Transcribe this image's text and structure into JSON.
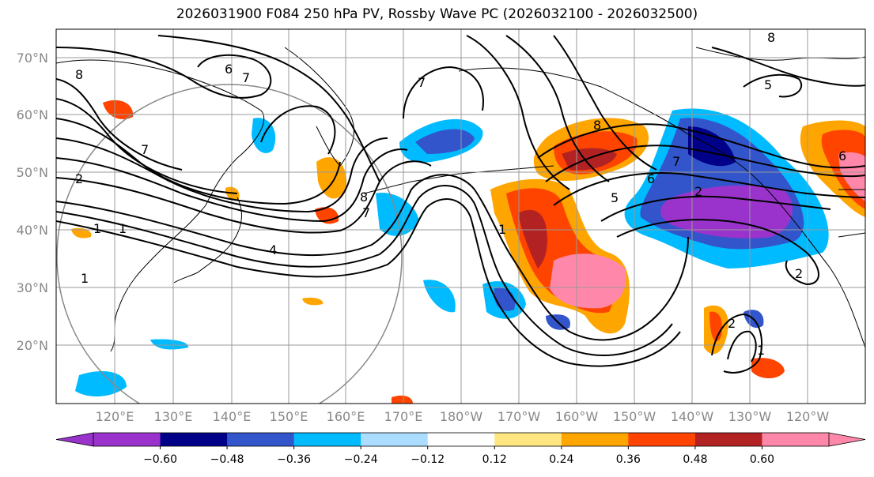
{
  "title": "2026031900 F084 250 hPa PV, Rossby Wave PC (2026032100 - 2026032500)",
  "map": {
    "lat_labels": [
      "70°N",
      "60°N",
      "50°N",
      "40°N",
      "30°N",
      "20°N"
    ],
    "lon_labels": [
      "120°E",
      "130°E",
      "140°E",
      "150°E",
      "160°E",
      "170°E",
      "180°W",
      "170°W",
      "160°W",
      "150°W",
      "140°W",
      "130°W",
      "120°W"
    ],
    "contour_labels": [
      "8",
      "6",
      "7",
      "2",
      "1",
      "1",
      "1",
      "7",
      "8",
      "7",
      "4",
      "8",
      "6",
      "7",
      "5",
      "2",
      "1",
      "5",
      "8",
      "7",
      "6",
      "2",
      "2",
      "1"
    ]
  },
  "colorbar": {
    "ticks": [
      "−0.60",
      "−0.48",
      "−0.36",
      "−0.24",
      "−0.12",
      "0.12",
      "0.24",
      "0.36",
      "0.48",
      "0.60"
    ],
    "colors": [
      "#9933cc",
      "#000088",
      "#3355cc",
      "#00bbff",
      "#aaddff",
      "#ffffff",
      "#ffe680",
      "#ffa500",
      "#ff4400",
      "#b22222",
      "#ff88aa"
    ]
  },
  "colors": {
    "purple": "#9933cc",
    "navy": "#000088",
    "blue": "#3355cc",
    "cyan": "#00bbff",
    "lightblue": "#aaddff",
    "yellow": "#ffe680",
    "orange": "#ffa500",
    "redorange": "#ff4400",
    "darkred": "#b22222",
    "pink": "#ff88aa"
  }
}
